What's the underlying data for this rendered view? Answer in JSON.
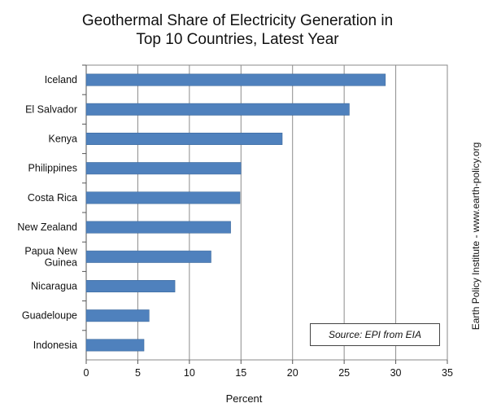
{
  "chart_data": {
    "type": "bar",
    "orientation": "horizontal",
    "title_lines": [
      "Geothermal Share of Electricity Generation in",
      "Top 10 Countries, Latest Year"
    ],
    "categories": [
      [
        "Iceland"
      ],
      [
        "El Salvador"
      ],
      [
        "Kenya"
      ],
      [
        "Philippines"
      ],
      [
        "Costa Rica"
      ],
      [
        "New Zealand"
      ],
      [
        "Papua New",
        "Guinea"
      ],
      [
        "Nicaragua"
      ],
      [
        "Guadeloupe"
      ],
      [
        "Indonesia"
      ]
    ],
    "values": [
      29.0,
      25.5,
      19.0,
      15.0,
      14.9,
      14.0,
      12.1,
      8.6,
      6.1,
      5.6
    ],
    "xlabel": "Percent",
    "ylabel": "",
    "xlim": [
      0,
      35
    ],
    "xticks": [
      0,
      5,
      10,
      15,
      20,
      25,
      30,
      35
    ],
    "grid": "vertical",
    "bar_color": "#4f81bd",
    "source_note": "Source: EPI from EIA",
    "side_credit": "Earth Policy Institute - www.earth-policy.org"
  }
}
